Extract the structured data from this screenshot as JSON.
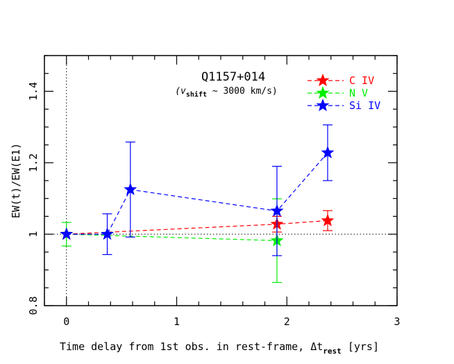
{
  "chart_data": {
    "type": "scatter",
    "title": "Q1157+014",
    "subtitle": {
      "prefix": "(v",
      "subscript": "shift",
      "suffix": " ~ 3000 km/s)"
    },
    "xlabel": {
      "main": "Time delay from 1st obs. in rest-frame, Δt",
      "subscript": "rest",
      "suffix": " [yrs]"
    },
    "ylabel": "EW(t)/EW(E1)",
    "xlim": [
      -0.2,
      3.0
    ],
    "ylim": [
      0.8,
      1.5
    ],
    "xticks": [
      0,
      1,
      2,
      3
    ],
    "xtick_labels": [
      "0",
      "1",
      "2",
      "3"
    ],
    "yticks": [
      0.8,
      1.0,
      1.2,
      1.4
    ],
    "ytick_labels": [
      "0.8",
      "1",
      "1.2",
      "1.4"
    ],
    "reference_lines": {
      "vertical_x": 0,
      "horizontal_y": 1.0
    },
    "legend_position": "top-right",
    "series": [
      {
        "name": "C IV",
        "color": "#ff0000",
        "x": [
          0.0,
          1.91,
          2.37
        ],
        "y": [
          1.0,
          1.028,
          1.038
        ],
        "err": [
          0.0,
          0.022,
          0.028
        ]
      },
      {
        "name": "N V",
        "color": "#00ee00",
        "x": [
          0.0,
          1.91
        ],
        "y": [
          1.0,
          0.982
        ],
        "err": [
          0.033,
          0.117
        ]
      },
      {
        "name": "Si IV",
        "color": "#0000ff",
        "x": [
          0.0,
          0.37,
          0.58,
          1.91,
          2.37
        ],
        "y": [
          1.0,
          1.0,
          1.125,
          1.065,
          1.228
        ],
        "err": [
          0.0,
          0.057,
          0.133,
          0.125,
          0.078
        ]
      }
    ]
  }
}
